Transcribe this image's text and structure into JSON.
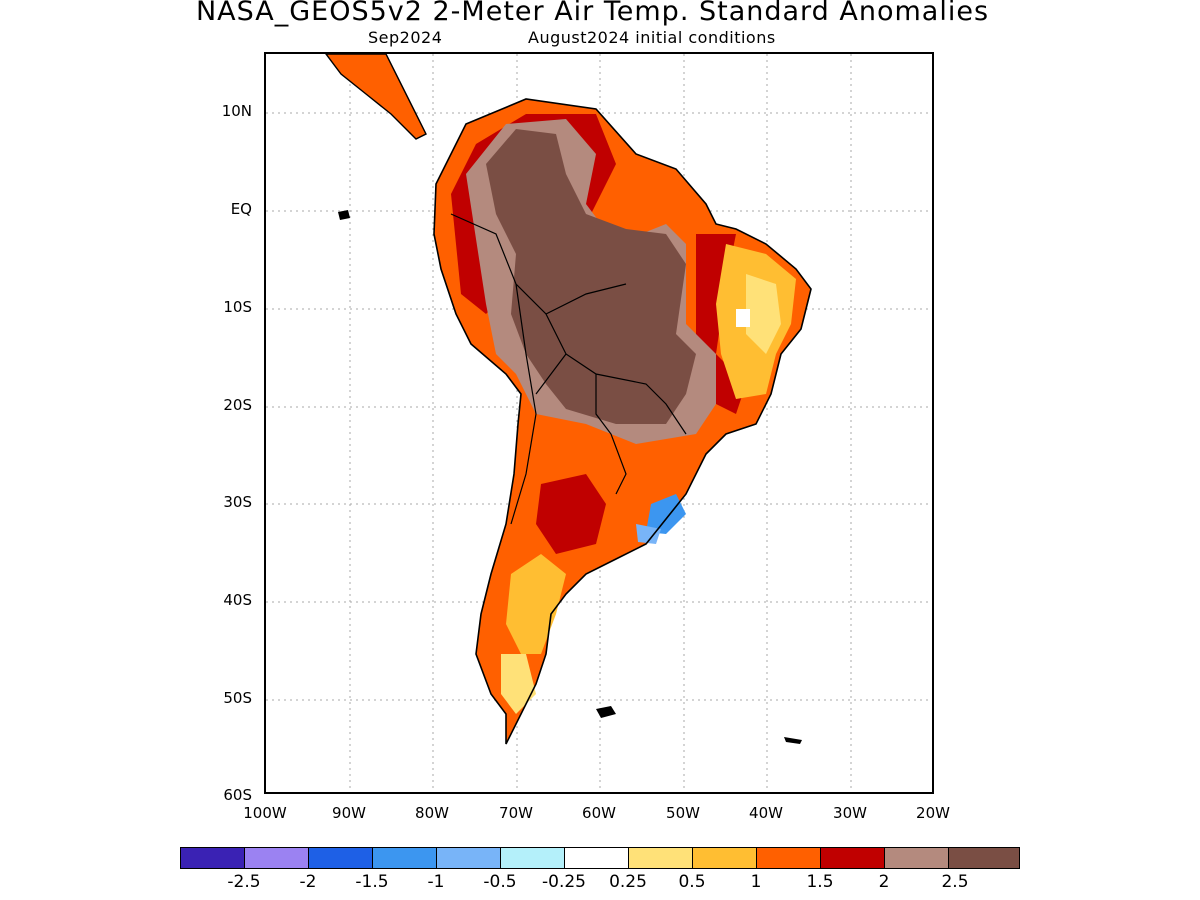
{
  "header": {
    "title": "NASA_GEOS5v2 2-Meter Air Temp. Standard Anomalies",
    "valid_month": "Sep2024",
    "init": "August2024 initial conditions"
  },
  "map": {
    "lat_labels": [
      "10N",
      "EQ",
      "10S",
      "20S",
      "30S",
      "40S",
      "50S",
      "60S"
    ],
    "lon_labels": [
      "100W",
      "90W",
      "80W",
      "70W",
      "60W",
      "50W",
      "40W",
      "30W",
      "20W"
    ],
    "region": "South America",
    "lon_range": [
      -100,
      -20
    ],
    "lat_range": [
      -60,
      15
    ]
  },
  "colorbar": {
    "colors": [
      "#3a22b4",
      "#9b82f2",
      "#1e60e6",
      "#3c96f0",
      "#78b4f8",
      "#b4f0fa",
      "#ffffff",
      "#ffe178",
      "#ffbe32",
      "#ff6000",
      "#c00000",
      "#b48a7e",
      "#7a4e44"
    ],
    "labels": [
      "-2.5",
      "-2",
      "-1.5",
      "-1",
      "-0.5",
      "-0.25",
      "0.25",
      "0.5",
      "1",
      "1.5",
      "2",
      "2.5"
    ]
  }
}
